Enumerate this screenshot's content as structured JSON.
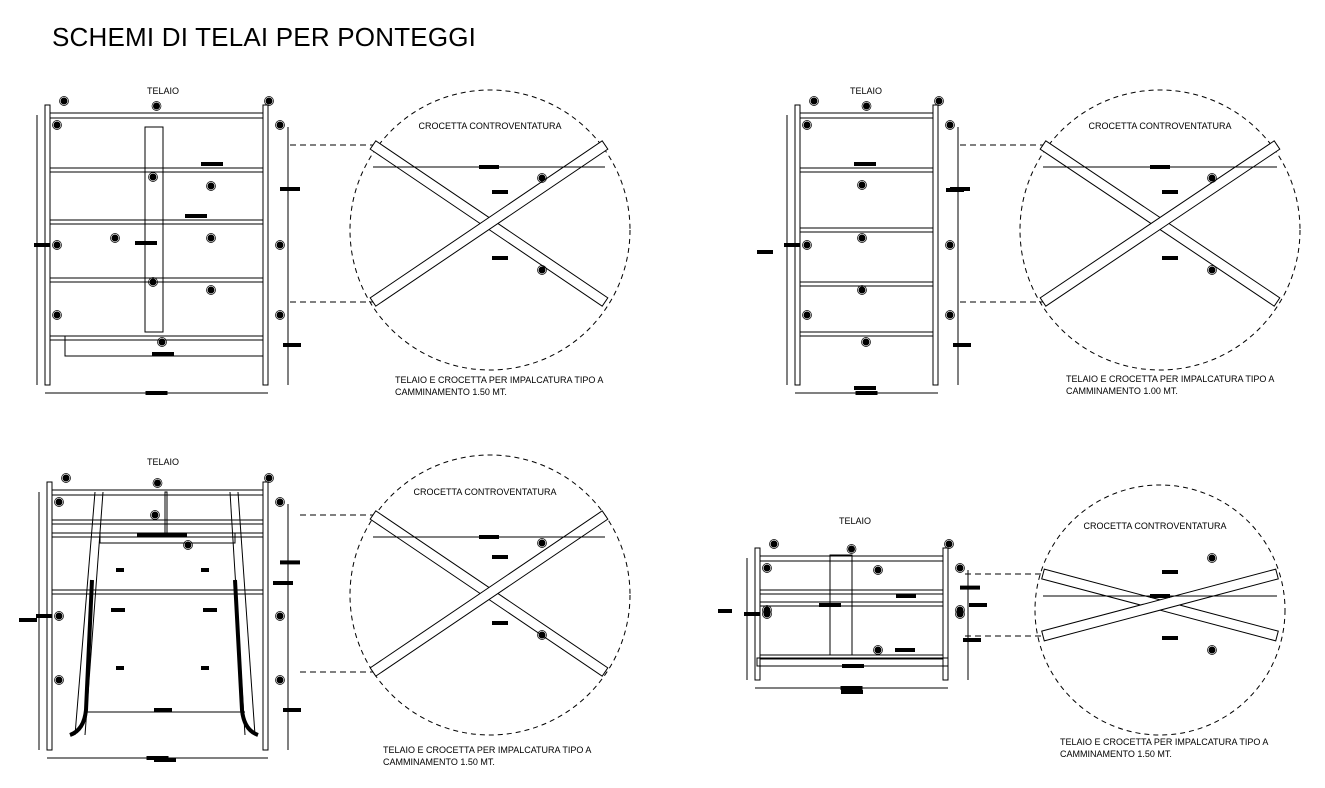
{
  "title": "SCHEMI DI TELAI PER PONTEGGI",
  "colors": {
    "ink": "#000000",
    "background": "#ffffff"
  },
  "panels": [
    {
      "frame_label": "TELAIO",
      "brace_label": "CROCETTA CONTROVENTATURA",
      "caption_line1": "TELAIO E CROCETTA PER IMPALCATURA TIPO A",
      "caption_line2": "CAMMINAMENTO 1.50 MT."
    },
    {
      "frame_label": "TELAIO",
      "brace_label": "CROCETTA CONTROVENTATURA",
      "caption_line1": "TELAIO E CROCETTA PER IMPALCATURA TIPO A",
      "caption_line2": "CAMMINAMENTO  1.00 MT."
    },
    {
      "frame_label": "TELAIO",
      "brace_label": "CROCETTA CONTROVENTATURA",
      "caption_line1": "TELAIO E CROCETTA PER IMPALCATURA TIPO A",
      "caption_line2": "CAMMINAMENTO 1.50 MT."
    },
    {
      "frame_label": "TELAIO",
      "brace_label": "CROCETTA CONTROVENTATURA",
      "caption_line1": "TELAIO E CROCETTA PER IMPALCATURA TIPO A",
      "caption_line2": "CAMMINAMENTO 1.50 MT."
    }
  ]
}
